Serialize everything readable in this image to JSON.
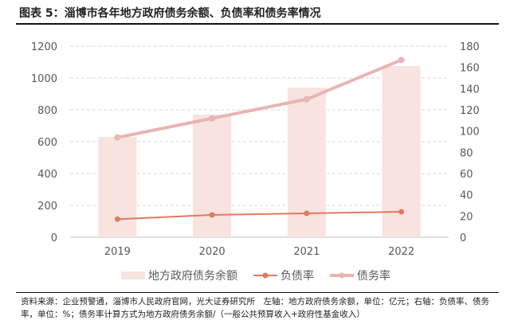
{
  "title": "图表 5：淄博市各年地方政府债务余额、负债率和债务率情况",
  "note": "资料来源：企业预警通，淄博市人民政府官网，光大证券研究所　左轴：地方政府债务余额，单位：亿元；右轴：负债率、债务率，单位：%；债务率计算方式为地方政府债务余额/（一般公共预算收入+政府性基金收入）",
  "chart_data": {
    "type": "bar+line",
    "categories": [
      "2019",
      "2020",
      "2021",
      "2022"
    ],
    "series": [
      {
        "name": "地方政府债务余额",
        "type": "bar",
        "axis": "left",
        "color": "#f8e3e0",
        "values": [
          630,
          770,
          940,
          1075
        ]
      },
      {
        "name": "负债率",
        "type": "line",
        "axis": "right",
        "color": "#e07a5f",
        "values": [
          17,
          21,
          22.5,
          24
        ]
      },
      {
        "name": "债务率",
        "type": "line",
        "axis": "right",
        "color": "#e8b4b4",
        "values": [
          94,
          112,
          130,
          167
        ]
      }
    ],
    "ylim_left": [
      0,
      1200
    ],
    "yticks_left": [
      "0",
      "200",
      "400",
      "600",
      "800",
      "1000",
      "1200"
    ],
    "ylim_right": [
      0,
      180
    ],
    "yticks_right": [
      "0",
      "20",
      "40",
      "60",
      "80",
      "100",
      "120",
      "140",
      "160",
      "180"
    ],
    "grid": true,
    "legend": "bottom"
  }
}
